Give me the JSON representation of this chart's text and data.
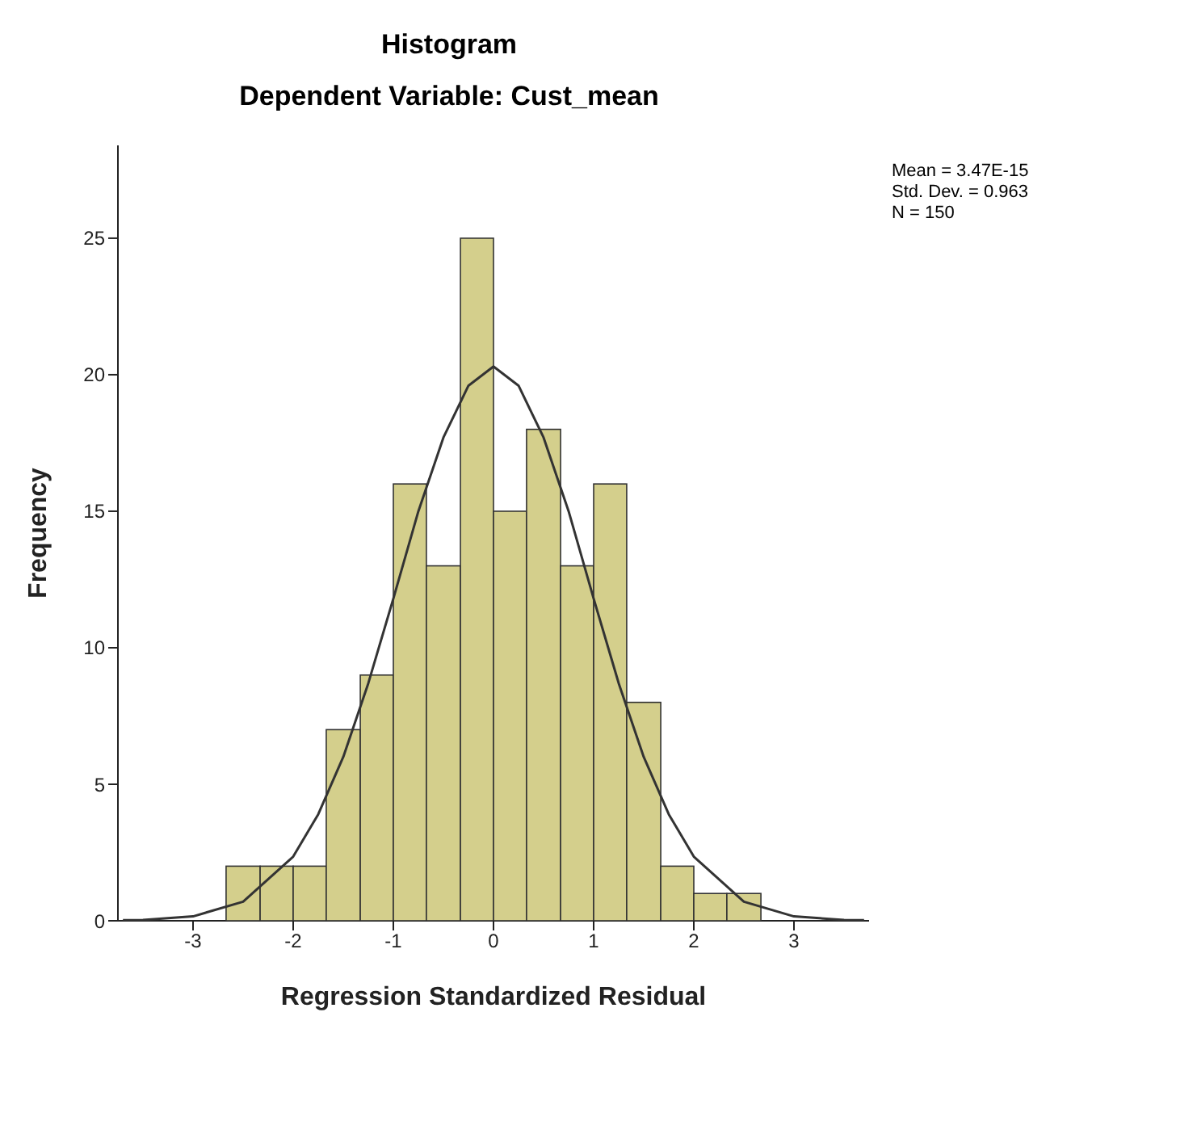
{
  "chart_data": {
    "type": "histogram",
    "title": "Histogram",
    "subtitle": "Dependent Variable: Cust_mean",
    "xlabel": "Regression Standardized Residual",
    "ylabel": "Frequency",
    "bins": [
      -2.67,
      -2.33,
      -2,
      -1.67,
      -1.33,
      -1,
      -0.67,
      -0.33,
      0,
      0.33,
      0.67,
      1,
      1.33,
      1.67,
      2,
      2.33,
      2.67
    ],
    "values": [
      2,
      2,
      2,
      7,
      9,
      16,
      13,
      25,
      15,
      18,
      13,
      16,
      8,
      2,
      1,
      1
    ],
    "color": "#d4cf8c",
    "series": [
      {
        "type": "line",
        "color": "#333333",
        "x": [
          -3.7,
          -3.5,
          -3,
          -2.5,
          -2,
          -1.75,
          -1.5,
          -1.25,
          -1,
          -0.75,
          -0.5,
          -0.25,
          0,
          0.25,
          0.5,
          0.75,
          1,
          1.25,
          1.5,
          1.75,
          2,
          2.5,
          3,
          3.5,
          3.7
        ],
        "values": [
          0.02,
          0.03,
          0.16,
          0.7,
          2.35,
          3.9,
          6,
          8.7,
          11.8,
          15,
          17.7,
          19.6,
          20.3,
          19.6,
          17.7,
          15,
          11.8,
          8.7,
          6,
          3.9,
          2.35,
          0.7,
          0.16,
          0.03,
          0.02
        ]
      }
    ],
    "xlim": [
      -3.75,
      3.75
    ],
    "xticks": [
      -3,
      -2,
      -1,
      0,
      1,
      2,
      3
    ],
    "ylim": [
      0,
      28.4
    ],
    "yticks": [
      0,
      5,
      10,
      15,
      20,
      25
    ],
    "grid": false,
    "legend": false,
    "marker": "none",
    "line_style": "solid",
    "annotations": [
      "Mean = 3.47E-15",
      "Std. Dev. = 0.963",
      "N = 150"
    ]
  }
}
